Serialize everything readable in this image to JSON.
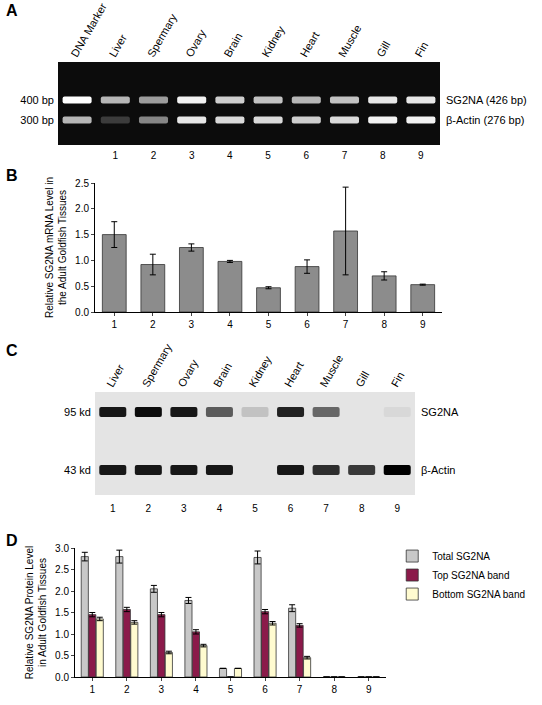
{
  "gels": [
    {
      "panel": "A",
      "style": "dark",
      "lanes": [
        {
          "label": "DNA Marker",
          "number": null,
          "bands": [
            1.0,
            0.7
          ]
        },
        {
          "label": "Liver",
          "number": "1",
          "bands": [
            0.7,
            0.2
          ]
        },
        {
          "label": "Spermary",
          "number": "2",
          "bands": [
            0.6,
            0.5
          ]
        },
        {
          "label": "Ovary",
          "number": "3",
          "bands": [
            0.95,
            0.9
          ]
        },
        {
          "label": "Brain",
          "number": "4",
          "bands": [
            0.8,
            0.85
          ]
        },
        {
          "label": "Kidney",
          "number": "5",
          "bands": [
            0.75,
            0.85
          ]
        },
        {
          "label": "Heart",
          "number": "6",
          "bands": [
            0.7,
            0.8
          ]
        },
        {
          "label": "Muscle",
          "number": "7",
          "bands": [
            0.75,
            0.85
          ]
        },
        {
          "label": "Gill",
          "number": "8",
          "bands": [
            0.9,
            0.95
          ]
        },
        {
          "label": "Fin",
          "number": "9",
          "bands": [
            0.9,
            0.95
          ]
        }
      ],
      "rows": [
        {
          "left": "400 bp",
          "right": "SG2NA (426 bp)"
        },
        {
          "left": "300 bp",
          "right": "β-Actin (276 bp)"
        }
      ]
    },
    {
      "panel": "C",
      "style": "light",
      "lanes": [
        {
          "label": "Liver",
          "number": "1",
          "bands": [
            0.9,
            0.9
          ]
        },
        {
          "label": "Spermary",
          "number": "2",
          "bands": [
            0.95,
            0.9
          ]
        },
        {
          "label": "Ovary",
          "number": "3",
          "bands": [
            0.9,
            0.9
          ]
        },
        {
          "label": "Brain",
          "number": "4",
          "bands": [
            0.6,
            0.9
          ]
        },
        {
          "label": "Kidney",
          "number": "5",
          "bands": [
            0.15,
            0.0
          ]
        },
        {
          "label": "Heart",
          "number": "6",
          "bands": [
            0.85,
            0.9
          ]
        },
        {
          "label": "Muscle",
          "number": "7",
          "bands": [
            0.55,
            0.8
          ]
        },
        {
          "label": "Gill",
          "number": "8",
          "bands": [
            0.0,
            0.75
          ]
        },
        {
          "label": "Fin",
          "number": "9",
          "bands": [
            0.05,
            1.0
          ]
        }
      ],
      "rows": [
        {
          "left": "95 kd",
          "right": "SG2NA"
        },
        {
          "left": "43 kd",
          "right": "β-Actin"
        }
      ]
    }
  ],
  "chart_data": [
    {
      "panel": "B",
      "type": "bar",
      "y_label": "Relative SG2NA mRNA Level in the Adult Goldfish Tissues",
      "categories": [
        "1",
        "2",
        "3",
        "4",
        "5",
        "6",
        "7",
        "8",
        "9"
      ],
      "values": [
        1.5,
        0.92,
        1.25,
        0.98,
        0.47,
        0.88,
        1.57,
        0.7,
        0.53
      ],
      "errors": [
        0.25,
        0.2,
        0.07,
        0.02,
        0.02,
        0.13,
        0.85,
        0.08,
        0.01
      ],
      "color": "#8c8c8c",
      "ylim": [
        0,
        2.5
      ],
      "yticks": [
        {
          "value": 0,
          "label": "0.0"
        },
        {
          "value": 0.5,
          "label": "0.5"
        },
        {
          "value": 1,
          "label": "1.0"
        },
        {
          "value": 1.5,
          "label": "1.5"
        },
        {
          "value": 2,
          "label": "2.0"
        },
        {
          "value": 2.5,
          "label": "2.5"
        }
      ],
      "grid": false
    },
    {
      "panel": "D",
      "type": "bar",
      "y_label": "Relative SG2NA Protein Level in Adult Goldfish Tissues",
      "categories": [
        "1",
        "2",
        "3",
        "4",
        "5",
        "6",
        "7",
        "8",
        "9"
      ],
      "series": [
        {
          "name": "Total SG2NA",
          "color": "#c8c8c8",
          "values": [
            2.8,
            2.8,
            2.05,
            1.78,
            0.2,
            2.78,
            1.6,
            0,
            0
          ],
          "errors": [
            0.1,
            0.15,
            0.08,
            0.07,
            0,
            0.15,
            0.08,
            0,
            0
          ]
        },
        {
          "name": "Top SG2NA band",
          "color": "#8b1a4a",
          "values": [
            1.45,
            1.57,
            1.45,
            1.05,
            0,
            1.52,
            1.2,
            0,
            0
          ],
          "errors": [
            0.05,
            0.05,
            0.05,
            0.05,
            0,
            0.05,
            0.04,
            0,
            0
          ]
        },
        {
          "name": "Bottom SG2NA band",
          "color": "#fffbd0",
          "values": [
            1.35,
            1.27,
            0.57,
            0.73,
            0.2,
            1.25,
            0.45,
            0,
            0
          ],
          "errors": [
            0.04,
            0.04,
            0.03,
            0.03,
            0,
            0.04,
            0.03,
            0,
            0
          ]
        }
      ],
      "ylim": [
        0,
        3
      ],
      "yticks": [
        {
          "value": 0,
          "label": "0.0"
        },
        {
          "value": 0.5,
          "label": "0.5"
        },
        {
          "value": 1,
          "label": "1.0"
        },
        {
          "value": 1.5,
          "label": "1.5"
        },
        {
          "value": 2,
          "label": "2.0"
        },
        {
          "value": 2.5,
          "label": "2.5"
        },
        {
          "value": 3,
          "label": "3.0"
        }
      ],
      "legend": "upper right",
      "grid": false
    }
  ]
}
